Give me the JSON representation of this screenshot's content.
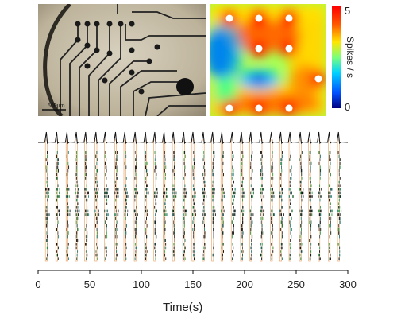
{
  "micrograph": {
    "scale_bar_label": "500µm"
  },
  "heatmap": {
    "colorbar_label": "Spikes / s",
    "colorbar_ticks": [
      "5",
      "0"
    ],
    "colors": [
      "#00007f",
      "#0050ff",
      "#00d4ff",
      "#7dff7a",
      "#ffe600",
      "#ff5a00",
      "#ff0000"
    ]
  },
  "chart_data": {
    "type": "raster",
    "xlabel": "Time(s)",
    "xlim": [
      0,
      300
    ],
    "xticks": [
      0,
      50,
      100,
      150,
      200,
      250,
      300
    ],
    "burst_times": [
      8,
      18,
      28,
      37,
      46,
      56,
      65,
      75,
      84,
      94,
      104,
      113,
      122,
      131,
      141,
      150,
      160,
      169,
      178,
      188,
      197,
      206,
      216,
      226,
      235,
      244,
      254,
      263,
      272,
      282,
      291
    ]
  }
}
